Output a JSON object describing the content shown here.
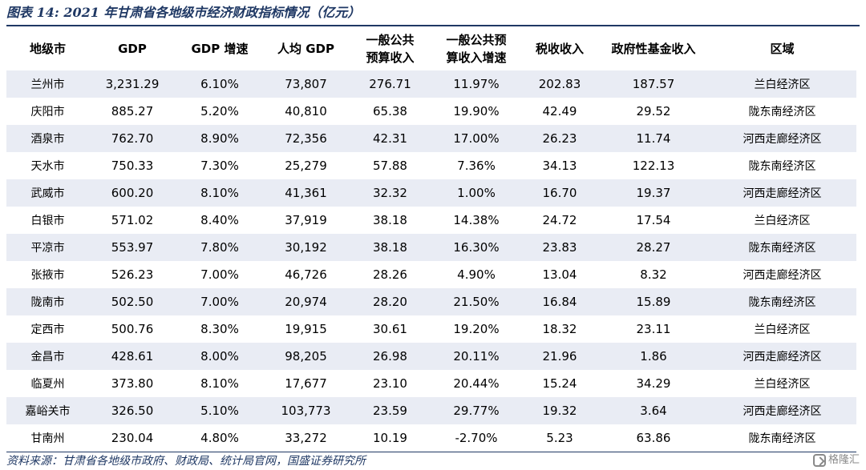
{
  "title": "图表 14:  2021 年甘肃省各地级市经济财政指标情况（亿元）",
  "table": {
    "headers": [
      [
        "地级市"
      ],
      [
        "GDP"
      ],
      [
        "GDP 增速"
      ],
      [
        "人均 GDP"
      ],
      [
        "一般公共",
        "预算收入"
      ],
      [
        "一般公共预",
        "算收入增速"
      ],
      [
        "税收收入"
      ],
      [
        "政府性基金收入"
      ],
      [
        "区域"
      ]
    ],
    "rows": [
      [
        "兰州市",
        "3,231.29",
        "6.10%",
        "73,807",
        "276.71",
        "11.97%",
        "202.83",
        "187.57",
        "兰白经济区"
      ],
      [
        "庆阳市",
        "885.27",
        "5.20%",
        "40,810",
        "65.38",
        "19.90%",
        "42.49",
        "29.52",
        "陇东南经济区"
      ],
      [
        "酒泉市",
        "762.70",
        "8.90%",
        "72,356",
        "42.31",
        "17.00%",
        "26.23",
        "11.74",
        "河西走廊经济区"
      ],
      [
        "天水市",
        "750.33",
        "7.30%",
        "25,279",
        "57.88",
        "7.36%",
        "34.13",
        "122.13",
        "陇东南经济区"
      ],
      [
        "武威市",
        "600.20",
        "8.10%",
        "41,361",
        "32.32",
        "1.00%",
        "16.70",
        "19.37",
        "河西走廊经济区"
      ],
      [
        "白银市",
        "571.02",
        "8.40%",
        "37,919",
        "38.18",
        "14.38%",
        "24.72",
        "17.54",
        "兰白经济区"
      ],
      [
        "平凉市",
        "553.97",
        "7.80%",
        "30,192",
        "38.18",
        "16.30%",
        "23.83",
        "28.27",
        "陇东南经济区"
      ],
      [
        "张掖市",
        "526.23",
        "7.00%",
        "46,726",
        "28.26",
        "4.90%",
        "13.04",
        "8.32",
        "河西走廊经济区"
      ],
      [
        "陇南市",
        "502.50",
        "7.00%",
        "20,974",
        "28.20",
        "21.50%",
        "16.84",
        "15.89",
        "陇东南经济区"
      ],
      [
        "定西市",
        "500.76",
        "8.30%",
        "19,915",
        "30.61",
        "19.20%",
        "18.32",
        "23.11",
        "兰白经济区"
      ],
      [
        "金昌市",
        "428.61",
        "8.00%",
        "98,205",
        "26.98",
        "20.11%",
        "21.96",
        "1.86",
        "河西走廊经济区"
      ],
      [
        "临夏州",
        "373.80",
        "8.10%",
        "17,677",
        "23.10",
        "20.44%",
        "15.24",
        "34.29",
        "兰白经济区"
      ],
      [
        "嘉峪关市",
        "326.50",
        "5.10%",
        "103,773",
        "23.59",
        "29.77%",
        "19.32",
        "3.64",
        "河西走廊经济区"
      ],
      [
        "甘南州",
        "230.04",
        "4.80%",
        "33,272",
        "10.19",
        "-2.70%",
        "5.23",
        "63.86",
        "陇东南经济区"
      ]
    ]
  },
  "source": "资料来源：甘肃省各地级市政府、财政局、统计局官网，国盛证券研究所",
  "watermark": "格隆汇",
  "colors": {
    "accent": "#1f3864",
    "stripe": "#e9ecf4"
  }
}
